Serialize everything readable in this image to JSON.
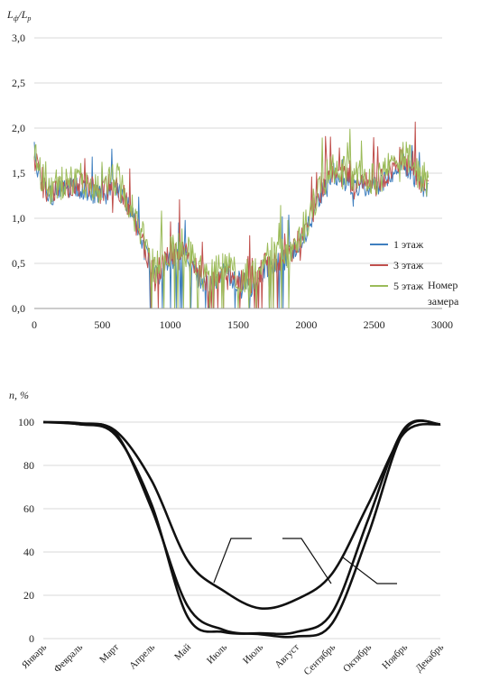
{
  "chart_data": [
    {
      "type": "line",
      "ylabel": "Lф/Lр",
      "ylabel_main": "L",
      "ylabel_sub1": "ф",
      "ylabel_sep": "/L",
      "ylabel_sub2": "р",
      "xlabel": "Номер замера",
      "xlabel_line1": "Номер",
      "xlabel_line2": "замера",
      "xlim": [
        0,
        3000
      ],
      "ylim": [
        0,
        3.0
      ],
      "x_ticks": [
        "0",
        "500",
        "1000",
        "1500",
        "2000",
        "2500",
        "3000"
      ],
      "y_ticks": [
        "0,0",
        "0,5",
        "1,0",
        "1,5",
        "2,0",
        "2,5",
        "3,0"
      ],
      "grid": "horizontal",
      "legend_position": "bottom-right",
      "series": [
        {
          "name": "1 этаж",
          "color": "#3f7fbf"
        },
        {
          "name": "3 этаж",
          "color": "#c0504d"
        },
        {
          "name": "5 этаж",
          "color": "#9bbb59"
        }
      ],
      "envelope": {
        "x": [
          0,
          100,
          200,
          300,
          400,
          500,
          600,
          700,
          800,
          850,
          900,
          1000,
          1100,
          1200,
          1300,
          1400,
          1500,
          1600,
          1700,
          1800,
          1900,
          2000,
          2100,
          2200,
          2300,
          2400,
          2500,
          2600,
          2700,
          2800,
          2900
        ],
        "y": [
          1.6,
          1.25,
          1.3,
          1.35,
          1.3,
          1.25,
          1.35,
          1.1,
          0.7,
          0.45,
          0.35,
          0.55,
          0.6,
          0.35,
          0.25,
          0.4,
          0.3,
          0.25,
          0.45,
          0.5,
          0.6,
          0.85,
          1.25,
          1.5,
          1.4,
          1.35,
          1.35,
          1.45,
          1.65,
          1.45,
          1.3
        ]
      }
    },
    {
      "type": "line",
      "ylabel": "n, %",
      "ylim": [
        0,
        100
      ],
      "y_ticks": [
        "0",
        "20",
        "40",
        "60",
        "80",
        "100"
      ],
      "categories": [
        "Январь",
        "Февраль",
        "Март",
        "Апрель",
        "Май",
        "Июль",
        "Июль",
        "Август",
        "Сентябрь",
        "Октябрь",
        "Ноябрь",
        "Декабрь"
      ],
      "grid": "horizontal",
      "series": [
        {
          "values": [
            100,
            99.5,
            96,
            73,
            36,
            22,
            14,
            18,
            30,
            62,
            95,
            99
          ]
        },
        {
          "values": [
            100,
            99,
            94,
            62,
            10,
            3,
            2.5,
            3,
            12,
            55,
            97,
            99
          ]
        },
        {
          "values": [
            100,
            99,
            95,
            60,
            15,
            4,
            2,
            1,
            7,
            48,
            96,
            99
          ]
        }
      ]
    }
  ]
}
